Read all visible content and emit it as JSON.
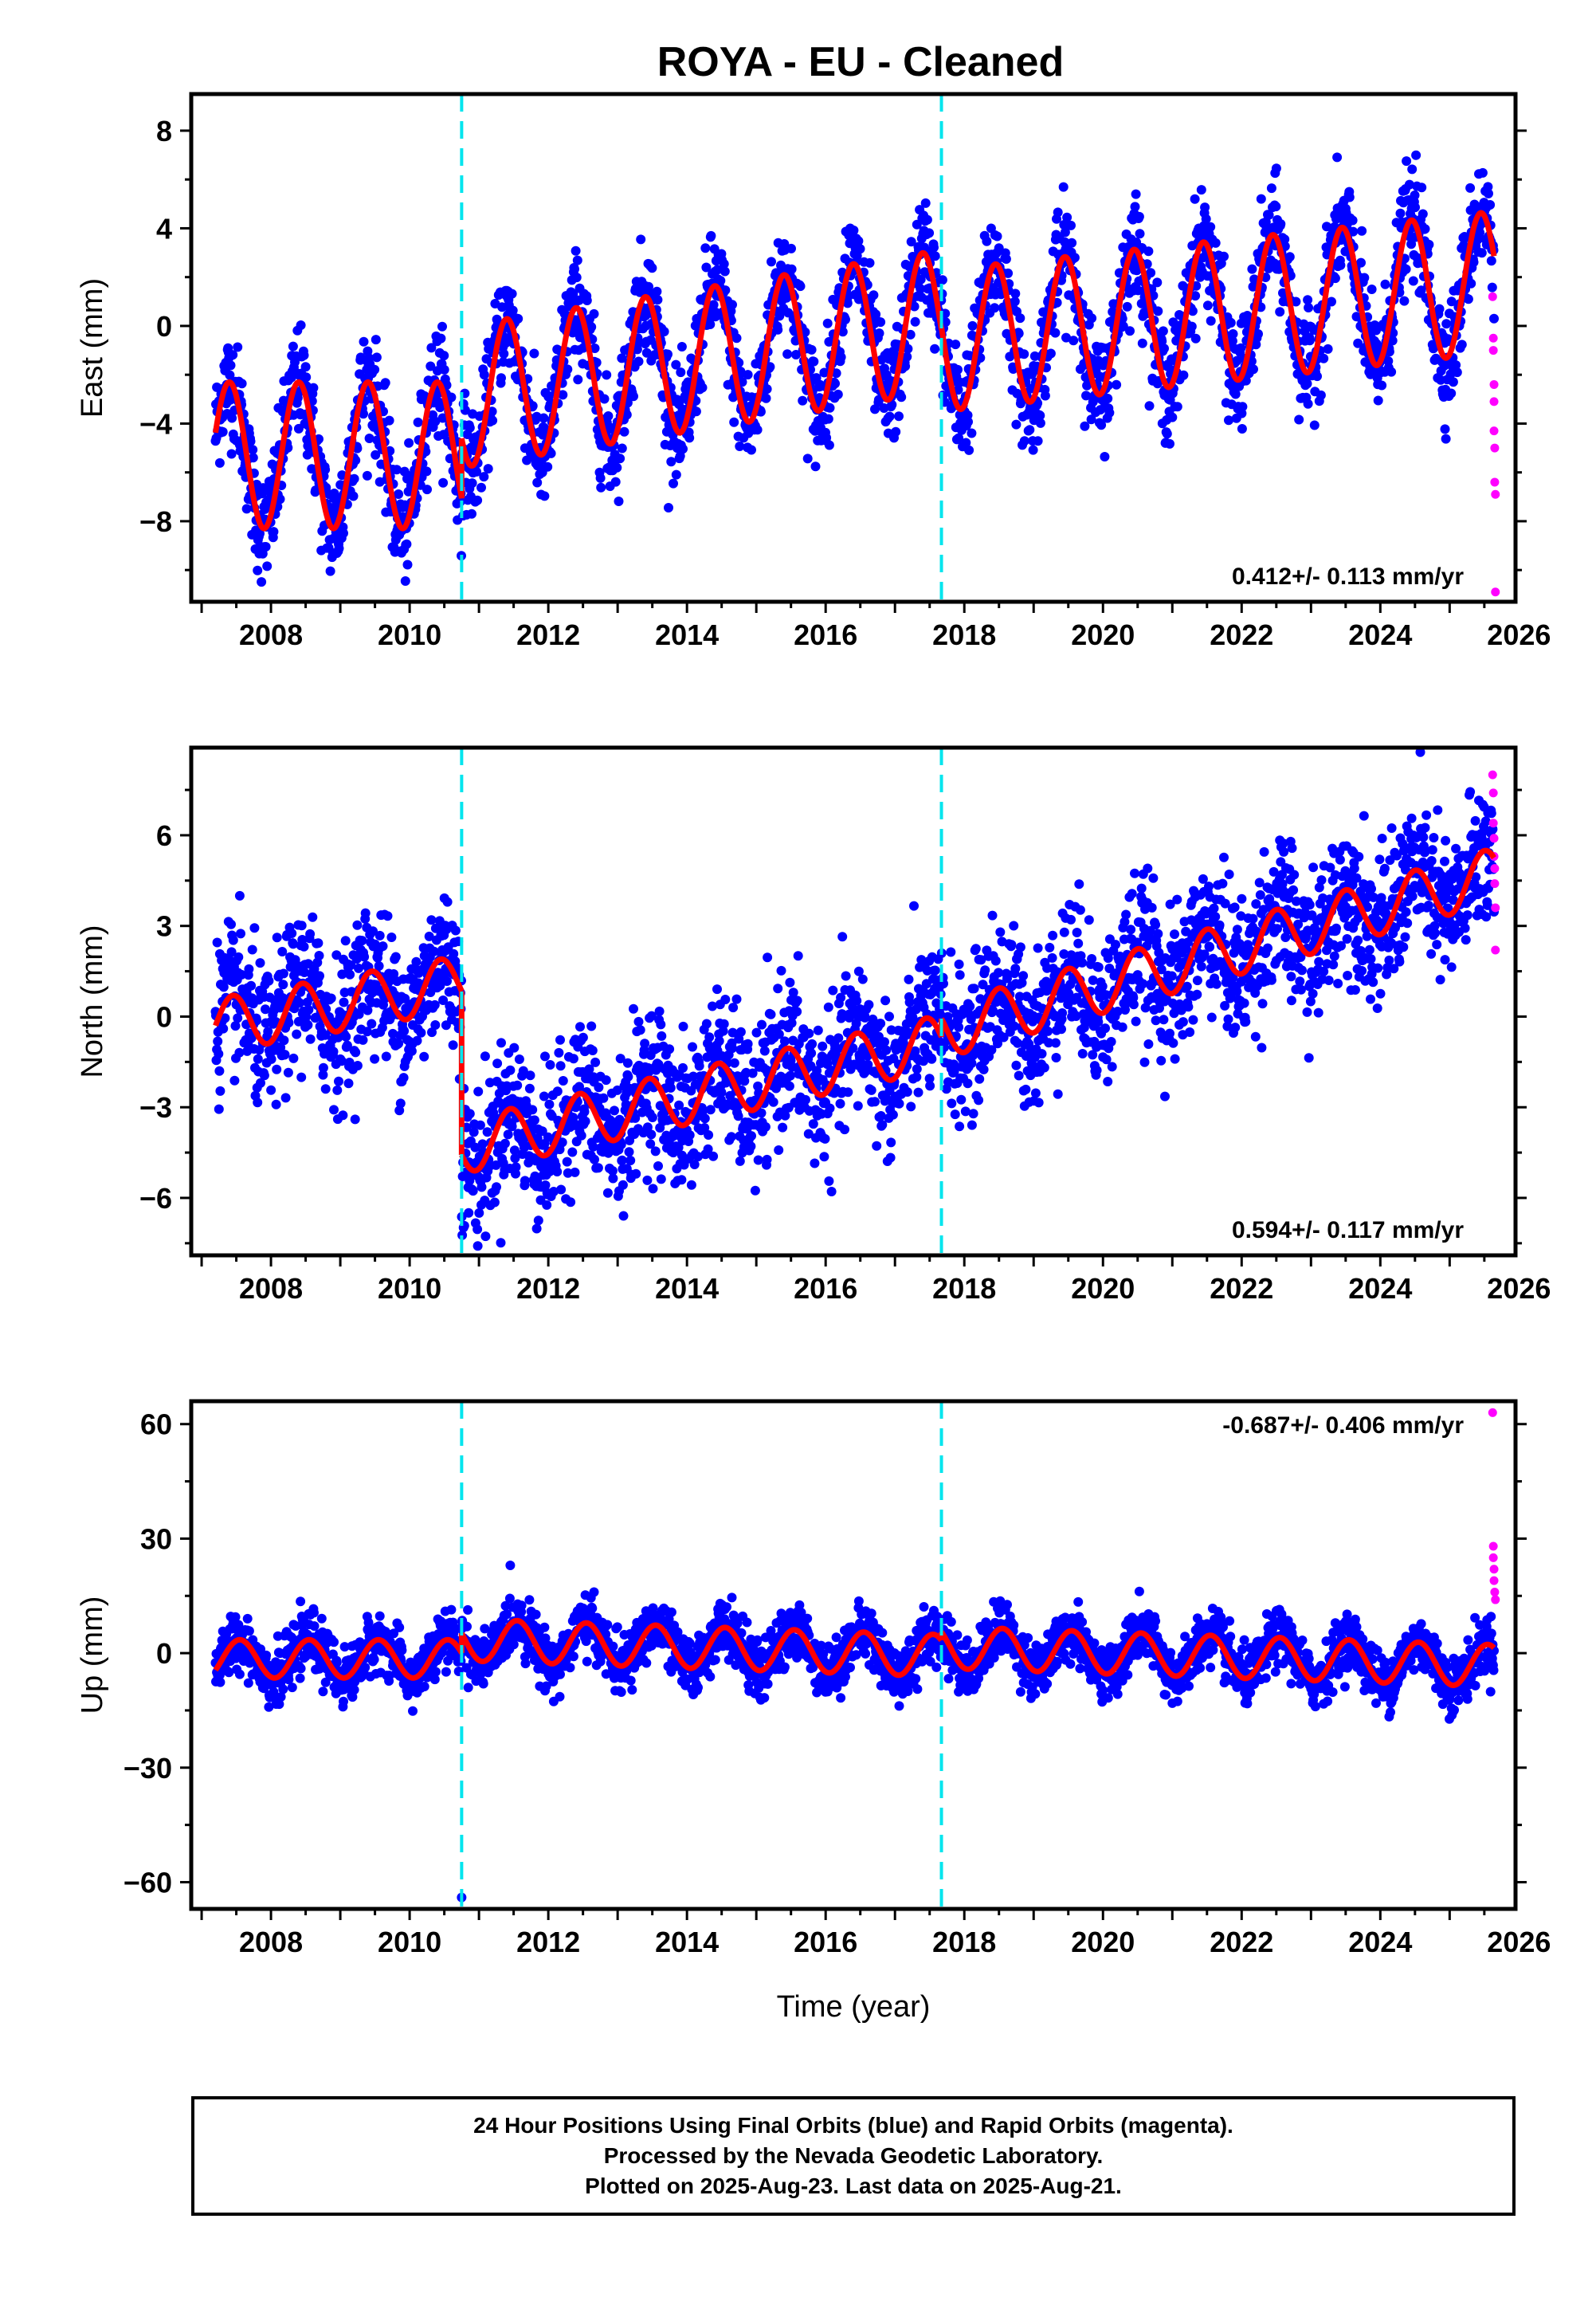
{
  "title": "ROYA  - EU - Cleaned",
  "colors": {
    "final_points": "#0000ff",
    "rapid_points": "#ff00ff",
    "model": "#ff0000",
    "events": "#00e5ee",
    "frame": "#000000"
  },
  "footer": {
    "line1": "24 Hour Positions Using Final Orbits (blue) and Rapid Orbits (magenta).",
    "line2": "Processed by the Nevada Geodetic Laboratory.",
    "line3": "Plotted on 2025-Aug-23. Last data on 2025-Aug-21."
  },
  "chart_data": [
    {
      "type": "scatter",
      "panel": "east",
      "ylabel": "East (mm)",
      "xlabel": "",
      "xlim": [
        2006.85,
        2025.95
      ],
      "ylim": [
        -11.3,
        9.5
      ],
      "xticks": [
        2008,
        2010,
        2012,
        2014,
        2016,
        2018,
        2020,
        2022,
        2024,
        2026
      ],
      "yticks": [
        -8,
        -4,
        0,
        4,
        8
      ],
      "event_lines": [
        2010.75,
        2017.67
      ],
      "rate_label": "0.412+/- 0.113 mm/yr",
      "rate_position": "bottom-right",
      "model": {
        "segments": [
          {
            "x_start": 2007.2,
            "x_end": 2010.75,
            "offset": -5.3,
            "rate": 0.0,
            "amplitude": 3.0,
            "phase_peak": 0.4
          },
          {
            "x_start": 2010.75,
            "x_end": 2017.67,
            "offset": -2.9,
            "rate": 0.45,
            "amplitude": 2.9,
            "phase_peak": 0.4
          },
          {
            "x_start": 2017.67,
            "x_end": 2025.64,
            "offset": -0.6,
            "rate": 0.3,
            "amplitude": 2.9,
            "phase_peak": 0.45
          }
        ]
      },
      "scatter": {
        "noise_sd": 1.1,
        "points_per_year": 160
      },
      "rapid_points": [
        {
          "x": 2025.62,
          "y": 1.2
        },
        {
          "x": 2025.63,
          "y": -0.5
        },
        {
          "x": 2025.63,
          "y": -1.0
        },
        {
          "x": 2025.64,
          "y": -2.4
        },
        {
          "x": 2025.64,
          "y": -3.1
        },
        {
          "x": 2025.64,
          "y": -4.3
        },
        {
          "x": 2025.65,
          "y": -5.0
        },
        {
          "x": 2025.65,
          "y": -6.4
        },
        {
          "x": 2025.66,
          "y": -6.9
        },
        {
          "x": 2025.66,
          "y": -10.9
        }
      ]
    },
    {
      "type": "scatter",
      "panel": "north",
      "ylabel": "North (mm)",
      "xlabel": "",
      "xlim": [
        2006.85,
        2025.95
      ],
      "ylim": [
        -7.9,
        8.9
      ],
      "xticks": [
        2008,
        2010,
        2012,
        2014,
        2016,
        2018,
        2020,
        2022,
        2024,
        2026
      ],
      "yticks": [
        -6,
        -3,
        0,
        3,
        6
      ],
      "event_lines": [
        2010.75,
        2017.67
      ],
      "rate_label": "0.594+/- 0.117 mm/yr",
      "rate_position": "bottom-right",
      "model": {
        "segments": [
          {
            "x_start": 2007.2,
            "x_end": 2010.75,
            "offset": -0.3,
            "rate": 0.4,
            "amplitude": 0.9,
            "phase_peak": 0.45
          },
          {
            "x_start": 2010.75,
            "x_end": 2017.67,
            "offset": -4.3,
            "rate": 0.5,
            "amplitude": 0.9,
            "phase_peak": 0.45
          },
          {
            "x_start": 2017.67,
            "x_end": 2025.64,
            "offset": -0.5,
            "rate": 0.65,
            "amplitude": 0.9,
            "phase_peak": 0.5
          }
        ]
      },
      "scatter": {
        "noise_sd": 1.2,
        "points_per_year": 160
      },
      "rapid_points": [
        {
          "x": 2025.62,
          "y": 8.0
        },
        {
          "x": 2025.63,
          "y": 7.4
        },
        {
          "x": 2025.63,
          "y": 6.4
        },
        {
          "x": 2025.64,
          "y": 5.9
        },
        {
          "x": 2025.64,
          "y": 5.3
        },
        {
          "x": 2025.65,
          "y": 4.9
        },
        {
          "x": 2025.65,
          "y": 4.4
        },
        {
          "x": 2025.66,
          "y": 3.6
        },
        {
          "x": 2025.66,
          "y": 2.2
        }
      ]
    },
    {
      "type": "scatter",
      "panel": "up",
      "ylabel": "Up (mm)",
      "xlabel": "Time (year)",
      "xlim": [
        2006.85,
        2025.95
      ],
      "ylim": [
        -67,
        66
      ],
      "xticks": [
        2008,
        2010,
        2012,
        2014,
        2016,
        2018,
        2020,
        2022,
        2024,
        2026
      ],
      "yticks": [
        -60,
        -30,
        0,
        30,
        60
      ],
      "event_lines": [
        2010.75,
        2017.67
      ],
      "rate_label": "-0.687+/- 0.406 mm/yr",
      "rate_position": "top-right",
      "model": {
        "segments": [
          {
            "x_start": 2007.2,
            "x_end": 2010.75,
            "offset": -1.5,
            "rate": 0.0,
            "amplitude": 5.0,
            "phase_peak": 0.55
          },
          {
            "x_start": 2010.75,
            "x_end": 2017.67,
            "offset": 3.5,
            "rate": -0.6,
            "amplitude": 5.5,
            "phase_peak": 0.55
          },
          {
            "x_start": 2017.67,
            "x_end": 2025.64,
            "offset": 1.5,
            "rate": -0.6,
            "amplitude": 5.5,
            "phase_peak": 0.55
          }
        ]
      },
      "scatter": {
        "noise_sd": 3.6,
        "points_per_year": 160
      },
      "outliers": [
        {
          "x": 2010.75,
          "y": -64.0
        }
      ],
      "rapid_points": [
        {
          "x": 2025.62,
          "y": 63.0
        },
        {
          "x": 2025.63,
          "y": 28.0
        },
        {
          "x": 2025.63,
          "y": 25.0
        },
        {
          "x": 2025.64,
          "y": 22.0
        },
        {
          "x": 2025.64,
          "y": 19.0
        },
        {
          "x": 2025.65,
          "y": 16.0
        },
        {
          "x": 2025.66,
          "y": 14.0
        }
      ]
    }
  ]
}
